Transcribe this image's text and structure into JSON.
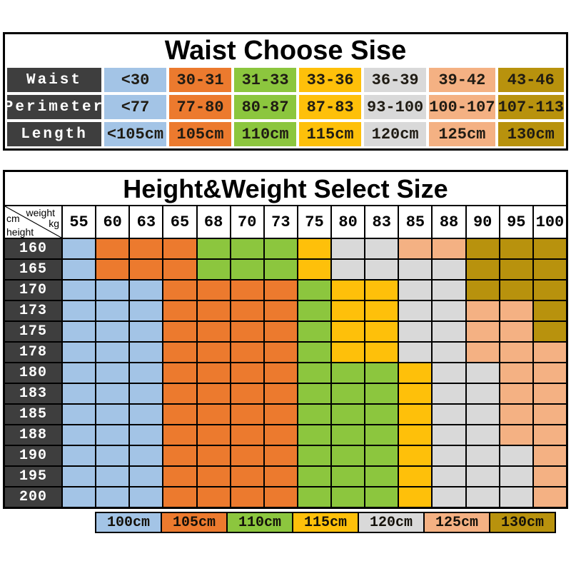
{
  "palette": {
    "blue": "#A3C4E6",
    "orange": "#EC7A2E",
    "green": "#8CC63E",
    "yellow": "#FEC00A",
    "gray": "#D9D9D9",
    "peach": "#F4B183",
    "gold": "#B8920D",
    "header_dark": "#3E3E3E",
    "border": "#000000",
    "text_dark": "#201C14",
    "text_light": "#FFFFFF"
  },
  "waist_table": {
    "title": "Waist Choose Sise",
    "row_labels": [
      "Waist",
      "Perimeter",
      "Length"
    ],
    "column_colors": [
      "blue",
      "orange",
      "green",
      "yellow",
      "gray",
      "peach",
      "gold"
    ],
    "rows": [
      [
        "<30",
        "30-31",
        "31-33",
        "33-36",
        "36-39",
        "39-42",
        "43-46"
      ],
      [
        "<77",
        "77-80",
        "80-87",
        "87-83",
        "93-100",
        "100-107",
        "107-113"
      ],
      [
        "<105cm",
        "105cm",
        "110cm",
        "115cm",
        "120cm",
        "125cm",
        "130cm"
      ]
    ]
  },
  "size_grid": {
    "title": "Height&Weight Select Size",
    "corner": {
      "weight": "weight",
      "kg": "kg",
      "cm": "cm",
      "height": "height"
    },
    "weights": [
      "55",
      "60",
      "63",
      "65",
      "68",
      "70",
      "73",
      "75",
      "80",
      "83",
      "85",
      "88",
      "90",
      "95",
      "100"
    ],
    "heights": [
      "160",
      "165",
      "170",
      "173",
      "175",
      "178",
      "180",
      "183",
      "185",
      "188",
      "190",
      "195",
      "200"
    ],
    "color_key": {
      "B": "blue",
      "O": "orange",
      "G": "green",
      "Y": "yellow",
      "E": "gray",
      "P": "peach",
      "D": "gold"
    },
    "cells": [
      "BOOOGGGYEEPPDDD",
      "BOOOGGGYEEEEDDD",
      "BBBOOOOGYYEEDDD",
      "BBBOOOOGYYEEPPD",
      "BBBOOOOGYYEEPPD",
      "BBBOOOOGYYEEPPP",
      "BBBOOOOGGGYEEPP",
      "BBBOOOOGGGYEEPP",
      "BBBOOOOGGGYEEPP",
      "BBBOOOOGGGYEEPP",
      "BBBOOOOGGGYEEEP",
      "BBBOOOOGGGYEEEP",
      "BBBOOOOGGGYEEEP"
    ]
  },
  "legend": {
    "items": [
      {
        "label": "100cm",
        "color": "blue"
      },
      {
        "label": "105cm",
        "color": "orange"
      },
      {
        "label": "110cm",
        "color": "green"
      },
      {
        "label": "115cm",
        "color": "yellow"
      },
      {
        "label": "120cm",
        "color": "gray"
      },
      {
        "label": "125cm",
        "color": "peach"
      },
      {
        "label": "130cm",
        "color": "gold"
      }
    ]
  },
  "chart_data": [
    {
      "type": "table",
      "title": "Waist Choose Sise",
      "columns": [
        "Waist",
        "<30",
        "30-31",
        "31-33",
        "33-36",
        "36-39",
        "39-42",
        "43-46"
      ],
      "rows": [
        [
          "Perimeter",
          "<77",
          "77-80",
          "80-87",
          "87-83",
          "93-100",
          "100-107",
          "107-113"
        ],
        [
          "Length",
          "<105cm",
          "105cm",
          "110cm",
          "115cm",
          "120cm",
          "125cm",
          "130cm"
        ]
      ]
    },
    {
      "type": "heatmap",
      "title": "Height&Weight Select Size",
      "xlabel": "weight kg",
      "ylabel": "cm height",
      "x": [
        55,
        60,
        63,
        65,
        68,
        70,
        73,
        75,
        80,
        83,
        85,
        88,
        90,
        95,
        100
      ],
      "y": [
        160,
        165,
        170,
        173,
        175,
        178,
        180,
        183,
        185,
        188,
        190,
        195,
        200
      ],
      "value_key": {
        "B": "100cm",
        "O": "105cm",
        "G": "110cm",
        "Y": "115cm",
        "E": "120cm",
        "P": "125cm",
        "D": "130cm"
      },
      "values": [
        "BOOOGGGYEEPPDDD",
        "BOOOGGGYEEEEDDD",
        "BBBOOOOGYYEEDDD",
        "BBBOOOOGYYEEPPD",
        "BBBOOOOGYYEEPPD",
        "BBBOOOOGYYEEPPP",
        "BBBOOOOGGGYEEPP",
        "BBBOOOOGGGYEEPP",
        "BBBOOOOGGGYEEPP",
        "BBBOOOOGGGYEEPP",
        "BBBOOOOGGGYEEEP",
        "BBBOOOOGGGYEEEP",
        "BBBOOOOGGGYEEEP"
      ],
      "legend_position": "bottom",
      "legend_entries": [
        "100cm",
        "105cm",
        "110cm",
        "115cm",
        "120cm",
        "125cm",
        "130cm"
      ]
    }
  ]
}
